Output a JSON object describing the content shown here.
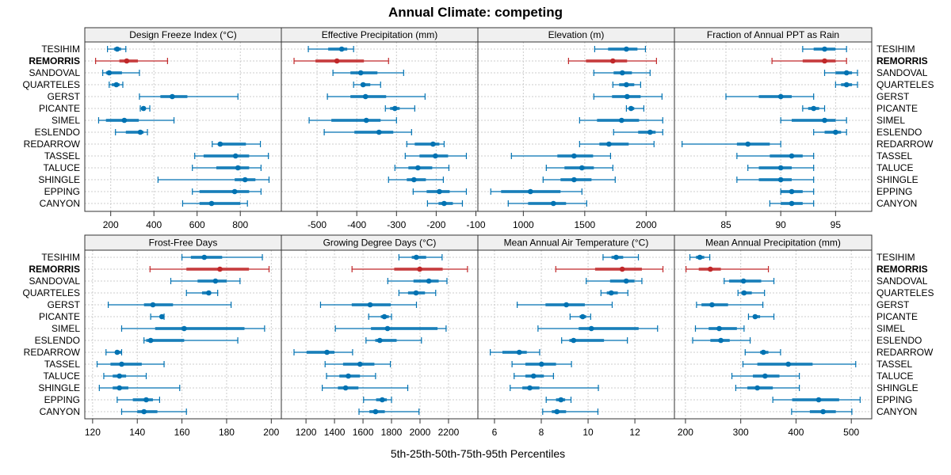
{
  "chart_data": {
    "type": "dot-interval",
    "title": "Annual Climate: competing",
    "xlabel": "5th-25th-50th-75th-95th Percentiles",
    "highlight": "REMORRIS",
    "colors": {
      "default": "#0072b2",
      "highlight": "#c0282a"
    },
    "grid": true,
    "sites": [
      "TESIHIM",
      "REMORRIS",
      "SANDOVAL",
      "QUARTELES",
      "GERST",
      "PICANTE",
      "SIMEL",
      "ESLENDO",
      "REDARROW",
      "TASSEL",
      "TALUCE",
      "SHINGLE",
      "EPPING",
      "CANYON"
    ],
    "panels": [
      {
        "title": "Design Freeze Index (°C)",
        "xlim": [
          80,
          990
        ],
        "ticks": [
          200,
          400,
          600,
          800
        ],
        "tick_labels": [
          "200",
          "400",
          "600",
          "800"
        ],
        "values": [
          [
            185,
            215,
            230,
            248,
            270
          ],
          [
            130,
            240,
            274,
            326,
            463
          ],
          [
            163,
            178,
            193,
            252,
            333
          ],
          [
            193,
            205,
            226,
            241,
            256
          ],
          [
            333,
            430,
            485,
            555,
            789
          ],
          [
            337,
            341,
            352,
            359,
            381
          ],
          [
            144,
            178,
            263,
            330,
            493
          ],
          [
            222,
            270,
            337,
            352,
            370
          ],
          [
            670,
            696,
            707,
            826,
            893
          ],
          [
            589,
            630,
            778,
            841,
            930
          ],
          [
            578,
            689,
            789,
            841,
            896
          ],
          [
            419,
            774,
            822,
            870,
            933
          ],
          [
            578,
            611,
            774,
            841,
            896
          ],
          [
            533,
            611,
            667,
            800,
            833
          ]
        ]
      },
      {
        "title": "Effective Precipitation (mm)",
        "xlim": [
          -590,
          -95
        ],
        "ticks": [
          -500,
          -400,
          -300,
          -200,
          -100
        ],
        "tick_labels": [
          "-500",
          "-400",
          "-300",
          "-200",
          "-100"
        ],
        "values": [
          [
            -522,
            -472,
            -438,
            -424,
            -408
          ],
          [
            -558,
            -504,
            -450,
            -382,
            -320
          ],
          [
            -460,
            -416,
            -390,
            -348,
            -282
          ],
          [
            -408,
            -390,
            -384,
            -366,
            -340
          ],
          [
            -474,
            -416,
            -378,
            -326,
            -228
          ],
          [
            -328,
            -316,
            -304,
            -292,
            -254
          ],
          [
            -520,
            -464,
            -376,
            -340,
            -300
          ],
          [
            -482,
            -406,
            -344,
            -308,
            -262
          ],
          [
            -274,
            -254,
            -208,
            -192,
            -180
          ],
          [
            -278,
            -242,
            -202,
            -170,
            -124
          ],
          [
            -304,
            -270,
            -246,
            -210,
            -168
          ],
          [
            -320,
            -274,
            -256,
            -226,
            -182
          ],
          [
            -258,
            -224,
            -192,
            -166,
            -124
          ],
          [
            -222,
            -194,
            -180,
            -158,
            -134
          ]
        ]
      },
      {
        "title": "Elevation (m)",
        "xlim": [
          630,
          2230
        ],
        "ticks": [
          1000,
          1500,
          2000
        ],
        "tick_labels": [
          "1000",
          "1500",
          "2000"
        ],
        "values": [
          [
            1581,
            1690,
            1839,
            1929,
            1994
          ],
          [
            1368,
            1510,
            1729,
            1845,
            2084
          ],
          [
            1574,
            1735,
            1806,
            1884,
            2032
          ],
          [
            1729,
            1780,
            1839,
            1903,
            1955
          ],
          [
            1574,
            1722,
            1845,
            1955,
            2129
          ],
          [
            1839,
            1862,
            1877,
            1903,
            1981
          ],
          [
            1458,
            1600,
            1800,
            1942,
            2135
          ],
          [
            1735,
            1935,
            2032,
            2077,
            2135
          ],
          [
            1458,
            1619,
            1697,
            1858,
            2064
          ],
          [
            903,
            1277,
            1413,
            1568,
            1710
          ],
          [
            1187,
            1335,
            1477,
            1574,
            1729
          ],
          [
            1161,
            1303,
            1413,
            1555,
            1748
          ],
          [
            735,
            819,
            1058,
            1303,
            1477
          ],
          [
            877,
            1039,
            1245,
            1348,
            1516
          ]
        ]
      },
      {
        "title": "Fraction of Annual PPT as Rain",
        "xlim": [
          80.3,
          98.3
        ],
        "ticks": [
          85,
          90,
          95
        ],
        "tick_labels": [
          "85",
          "90",
          "95"
        ],
        "values": [
          [
            92,
            93,
            94,
            95,
            96
          ],
          [
            89.2,
            92,
            94,
            95,
            96
          ],
          [
            94,
            95,
            96,
            96.5,
            97
          ],
          [
            95,
            95.5,
            96,
            96.5,
            97
          ],
          [
            85,
            88,
            90,
            91,
            93
          ],
          [
            92,
            92.5,
            93,
            93.5,
            94
          ],
          [
            90,
            91,
            94,
            95,
            96
          ],
          [
            93,
            94,
            95,
            95.5,
            96
          ],
          [
            81,
            86,
            87,
            89,
            90
          ],
          [
            86,
            89,
            91,
            92,
            93
          ],
          [
            87,
            88,
            90,
            91,
            93
          ],
          [
            86,
            88,
            90,
            91,
            93
          ],
          [
            90,
            90,
            91,
            92,
            93
          ],
          [
            89,
            90,
            91,
            92,
            93
          ]
        ]
      },
      {
        "title": "Frost-Free Days",
        "xlim": [
          116.5,
          204.5
        ],
        "ticks": [
          120,
          140,
          160,
          180,
          200
        ],
        "tick_labels": [
          "120",
          "140",
          "160",
          "180",
          "200"
        ],
        "values": [
          [
            160,
            164,
            170,
            178,
            196
          ],
          [
            145.7,
            162,
            177,
            190,
            199
          ],
          [
            155,
            167,
            175,
            180,
            186
          ],
          [
            162,
            169,
            172,
            173,
            176
          ],
          [
            127,
            143,
            147,
            156,
            182
          ],
          [
            146,
            150,
            151,
            152,
            152
          ],
          [
            133,
            148,
            161,
            188,
            197
          ],
          [
            143,
            144,
            146,
            161,
            185
          ],
          [
            126,
            130,
            131,
            133,
            133
          ],
          [
            122,
            128,
            133,
            142,
            152
          ],
          [
            125,
            129,
            132,
            135,
            144
          ],
          [
            123,
            129,
            132,
            136,
            159
          ],
          [
            131,
            138,
            144,
            147,
            150
          ],
          [
            133,
            140,
            143,
            149,
            162
          ]
        ]
      },
      {
        "title": "Growing Degree Days (°C)",
        "xlim": [
          1027,
          2406
        ],
        "ticks": [
          1200,
          1400,
          1600,
          1800,
          2000,
          2200
        ],
        "tick_labels": [
          "1200",
          "1400",
          "1600",
          "1800",
          "2000",
          "2200"
        ],
        "values": [
          [
            1852,
            1942,
            1974,
            2043,
            2155
          ],
          [
            1523,
            1819,
            1998,
            2159,
            2333
          ],
          [
            1774,
            1954,
            2062,
            2131,
            2189
          ],
          [
            1852,
            1916,
            1972,
            2035,
            2110
          ],
          [
            1302,
            1521,
            1650,
            1795,
            1975
          ],
          [
            1640,
            1725,
            1750,
            1781,
            1800
          ],
          [
            1406,
            1656,
            1772,
            2123,
            2183
          ],
          [
            1621,
            1686,
            1718,
            1836,
            2010
          ],
          [
            1116,
            1204,
            1347,
            1400,
            1527
          ],
          [
            1334,
            1460,
            1579,
            1680,
            1792
          ],
          [
            1344,
            1434,
            1497,
            1579,
            1688
          ],
          [
            1314,
            1424,
            1478,
            1568,
            1914
          ],
          [
            1604,
            1692,
            1735,
            1767,
            1800
          ],
          [
            1572,
            1645,
            1688,
            1753,
            1993
          ]
        ]
      },
      {
        "title": "Mean Annual Air Temperature (°C)",
        "xlim": [
          5.29,
          13.69
        ],
        "ticks": [
          6,
          8,
          10,
          12
        ],
        "tick_labels": [
          "6",
          "8",
          "10",
          "12"
        ],
        "values": [
          [
            10.64,
            11.0,
            11.2,
            11.5,
            12.15
          ],
          [
            8.62,
            10.3,
            11.46,
            12.3,
            13.2
          ],
          [
            9.92,
            10.94,
            11.63,
            11.98,
            12.3
          ],
          [
            10.55,
            10.8,
            10.99,
            11.27,
            11.7
          ],
          [
            6.97,
            8.18,
            9.07,
            9.86,
            11.03
          ],
          [
            9.23,
            9.64,
            9.77,
            9.92,
            10.11
          ],
          [
            7.86,
            9.6,
            10.14,
            12.16,
            12.97
          ],
          [
            8.87,
            9.2,
            9.38,
            10.68,
            11.68
          ],
          [
            5.82,
            6.34,
            7.06,
            7.38,
            7.93
          ],
          [
            6.75,
            7.32,
            8.01,
            8.63,
            9.29
          ],
          [
            6.84,
            7.32,
            7.67,
            8.11,
            8.52
          ],
          [
            6.67,
            7.19,
            7.51,
            7.92,
            10.44
          ],
          [
            8.21,
            8.63,
            8.84,
            9.02,
            9.27
          ],
          [
            8.06,
            8.45,
            8.67,
            9.06,
            10.42
          ]
        ]
      },
      {
        "title": "Mean Annual Precipitation (mm)",
        "xlim": [
          180,
          537
        ],
        "ticks": [
          200,
          300,
          400,
          500
        ],
        "tick_labels": [
          "200",
          "300",
          "400",
          "500"
        ],
        "values": [
          [
            208,
            219,
            226,
            234,
            244
          ],
          [
            201,
            224,
            245,
            264,
            350
          ],
          [
            270,
            279,
            305,
            337,
            360
          ],
          [
            295,
            301,
            306,
            320,
            343
          ],
          [
            220,
            229,
            248,
            277,
            340
          ],
          [
            314,
            323,
            326,
            335,
            360
          ],
          [
            218,
            242,
            261,
            293,
            306
          ],
          [
            213,
            245,
            264,
            280,
            317
          ],
          [
            308,
            335,
            341,
            350,
            372
          ],
          [
            304,
            330,
            386,
            430,
            508
          ],
          [
            284,
            322,
            344,
            370,
            406
          ],
          [
            291,
            312,
            330,
            358,
            406
          ],
          [
            358,
            393,
            441,
            478,
            516
          ],
          [
            392,
            425,
            449,
            472,
            501
          ]
        ]
      }
    ]
  }
}
